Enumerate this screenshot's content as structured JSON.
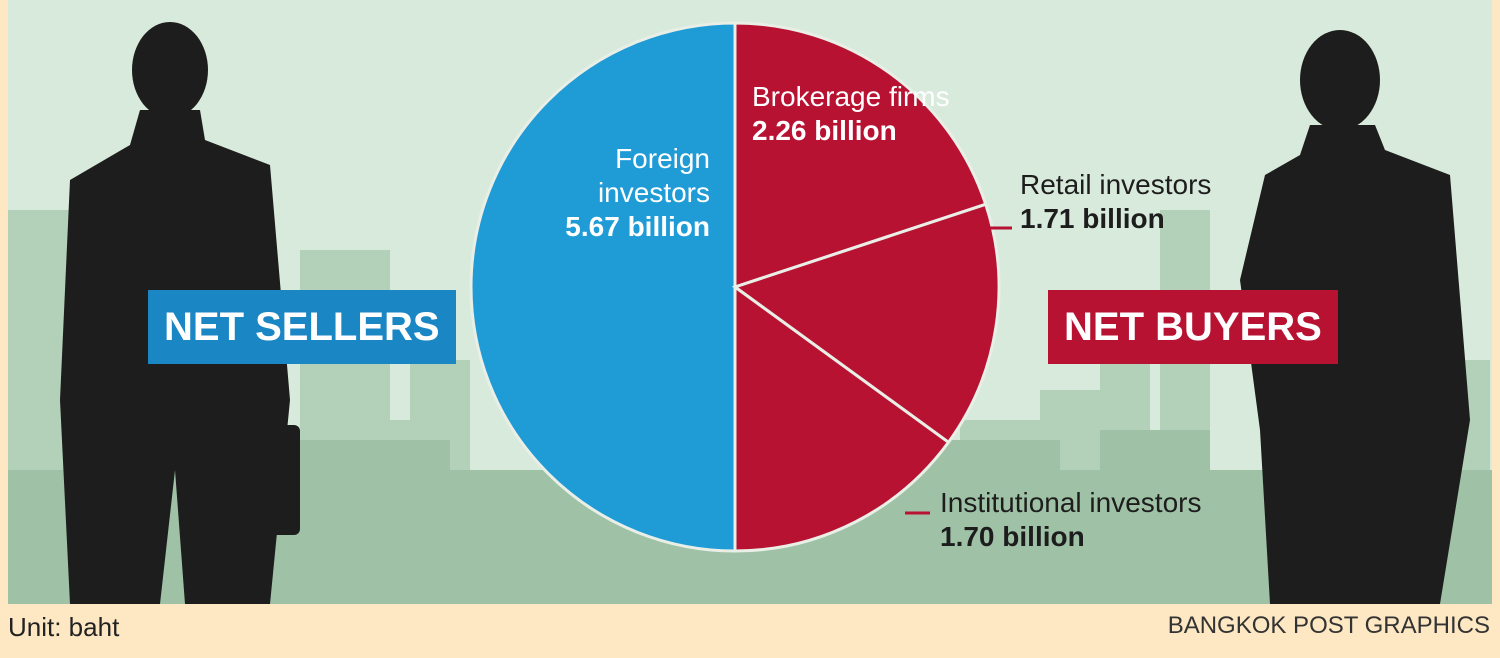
{
  "chart_data": {
    "type": "pie",
    "categories": [
      "Foreign investors",
      "Brokerage firms",
      "Retail investors",
      "Institutional investors"
    ],
    "values": [
      5.67,
      2.26,
      1.71,
      1.7
    ],
    "value_labels": [
      "5.67 billion",
      "2.26 billion",
      "1.71 billion",
      "1.70 billion"
    ],
    "colors": [
      "#1f9bd6",
      "#b81232",
      "#b81232",
      "#b81232"
    ],
    "start_angle": 180,
    "left_label": "NET SELLERS",
    "right_label": "NET BUYERS",
    "unit_note": "Unit: baht",
    "source": "BANGKOK POST GRAPHICS"
  }
}
